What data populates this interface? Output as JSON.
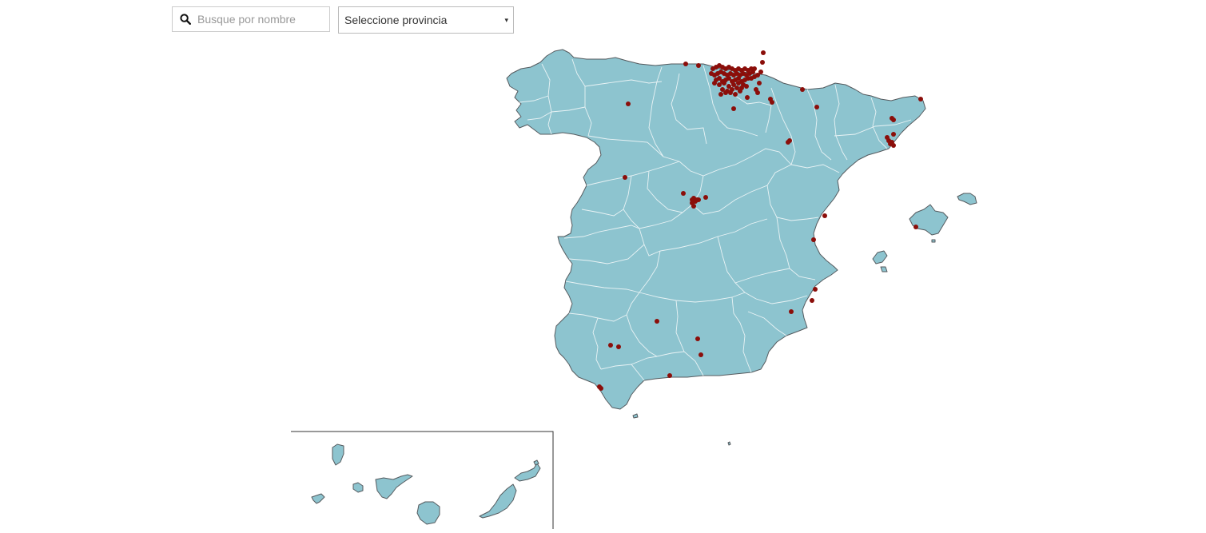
{
  "controls": {
    "search_placeholder": "Busque por nombre",
    "search_value": "",
    "search_icon": "search-icon",
    "province_select_value": "Seleccione provincia",
    "province_select_arrow": "▾"
  },
  "map": {
    "land_color": "#8dc4cf",
    "border_color": "#555a5e",
    "province_border_color": "#e9f3f5",
    "marker_color": "#8b0e0a",
    "inset_region": "canary-islands"
  }
}
